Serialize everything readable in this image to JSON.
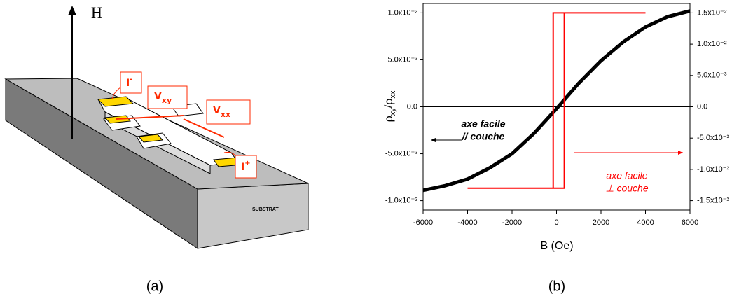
{
  "diagram": {
    "field_label": "H",
    "labels": [
      {
        "base": "I",
        "sup": "-"
      },
      {
        "base": "V",
        "sub": "xy"
      },
      {
        "base": "V",
        "sub": "xx"
      },
      {
        "base": "I",
        "sup": "+"
      }
    ],
    "substrate": "SUBSTRAT",
    "caption": "(a)"
  },
  "chart_data": {
    "type": "line",
    "caption": "(b)",
    "xlabel": "B (Oe)",
    "ylabel": [
      {
        "text": "ρ"
      },
      {
        "text": "xy",
        "shift": "sub"
      },
      {
        "text": "/ρ"
      },
      {
        "text": "xx",
        "shift": "sub"
      }
    ],
    "xlim": [
      -6000,
      6000
    ],
    "xticks": [
      -6000,
      -4000,
      -2000,
      0,
      2000,
      4000,
      6000
    ],
    "ylim": [
      -0.011,
      0.011
    ],
    "yticks": [
      {
        "value": 0.01,
        "label": "1.0x10⁻²"
      },
      {
        "value": 0.005,
        "label": "5.0x10⁻³"
      },
      {
        "value": 0,
        "label": "0.0"
      },
      {
        "value": -0.005,
        "label": "-5.0x10⁻³"
      },
      {
        "value": -0.01,
        "label": "-1.0x10⁻²"
      }
    ],
    "y2lim": [
      -0.0165,
      0.0165
    ],
    "y2ticks": [
      {
        "value": 0.015,
        "label": "1.5x10⁻²"
      },
      {
        "value": 0.01,
        "label": "1.0x10⁻²"
      },
      {
        "value": 0.005,
        "label": "5.0x10⁻³"
      },
      {
        "value": 0,
        "label": "0.0"
      },
      {
        "value": -0.005,
        "label": "-5.0x10⁻³"
      },
      {
        "value": -0.01,
        "label": "-1.0x10⁻²"
      },
      {
        "value": -0.015,
        "label": "-1.5x10⁻²"
      }
    ],
    "series": [
      {
        "color": "#000000",
        "axis": "y",
        "width": 5,
        "x": [
          -6000,
          -5000,
          -4000,
          -3000,
          -2000,
          -1000,
          0,
          1000,
          2000,
          3000,
          4000,
          5000,
          6000
        ],
        "values": [
          -0.0089,
          -0.0084,
          -0.0077,
          -0.0065,
          -0.005,
          -0.0028,
          -0.0002,
          0.0025,
          0.0049,
          0.0069,
          0.0085,
          0.0096,
          0.0102
        ]
      },
      {
        "color": "#ff0000",
        "axis": "y2",
        "width": 2,
        "x": [
          -4000,
          350,
          350,
          4000,
          -150,
          -150,
          -4000
        ],
        "values": [
          -0.013,
          -0.013,
          0.015,
          0.015,
          0.015,
          -0.013,
          -0.013
        ]
      }
    ],
    "annotations": [
      {
        "lines": [
          "axe facile",
          "// couche"
        ],
        "color": "#000000"
      },
      {
        "lines": [
          "axe facile",
          "⊥  couche"
        ],
        "color": "#ff0000"
      }
    ]
  }
}
